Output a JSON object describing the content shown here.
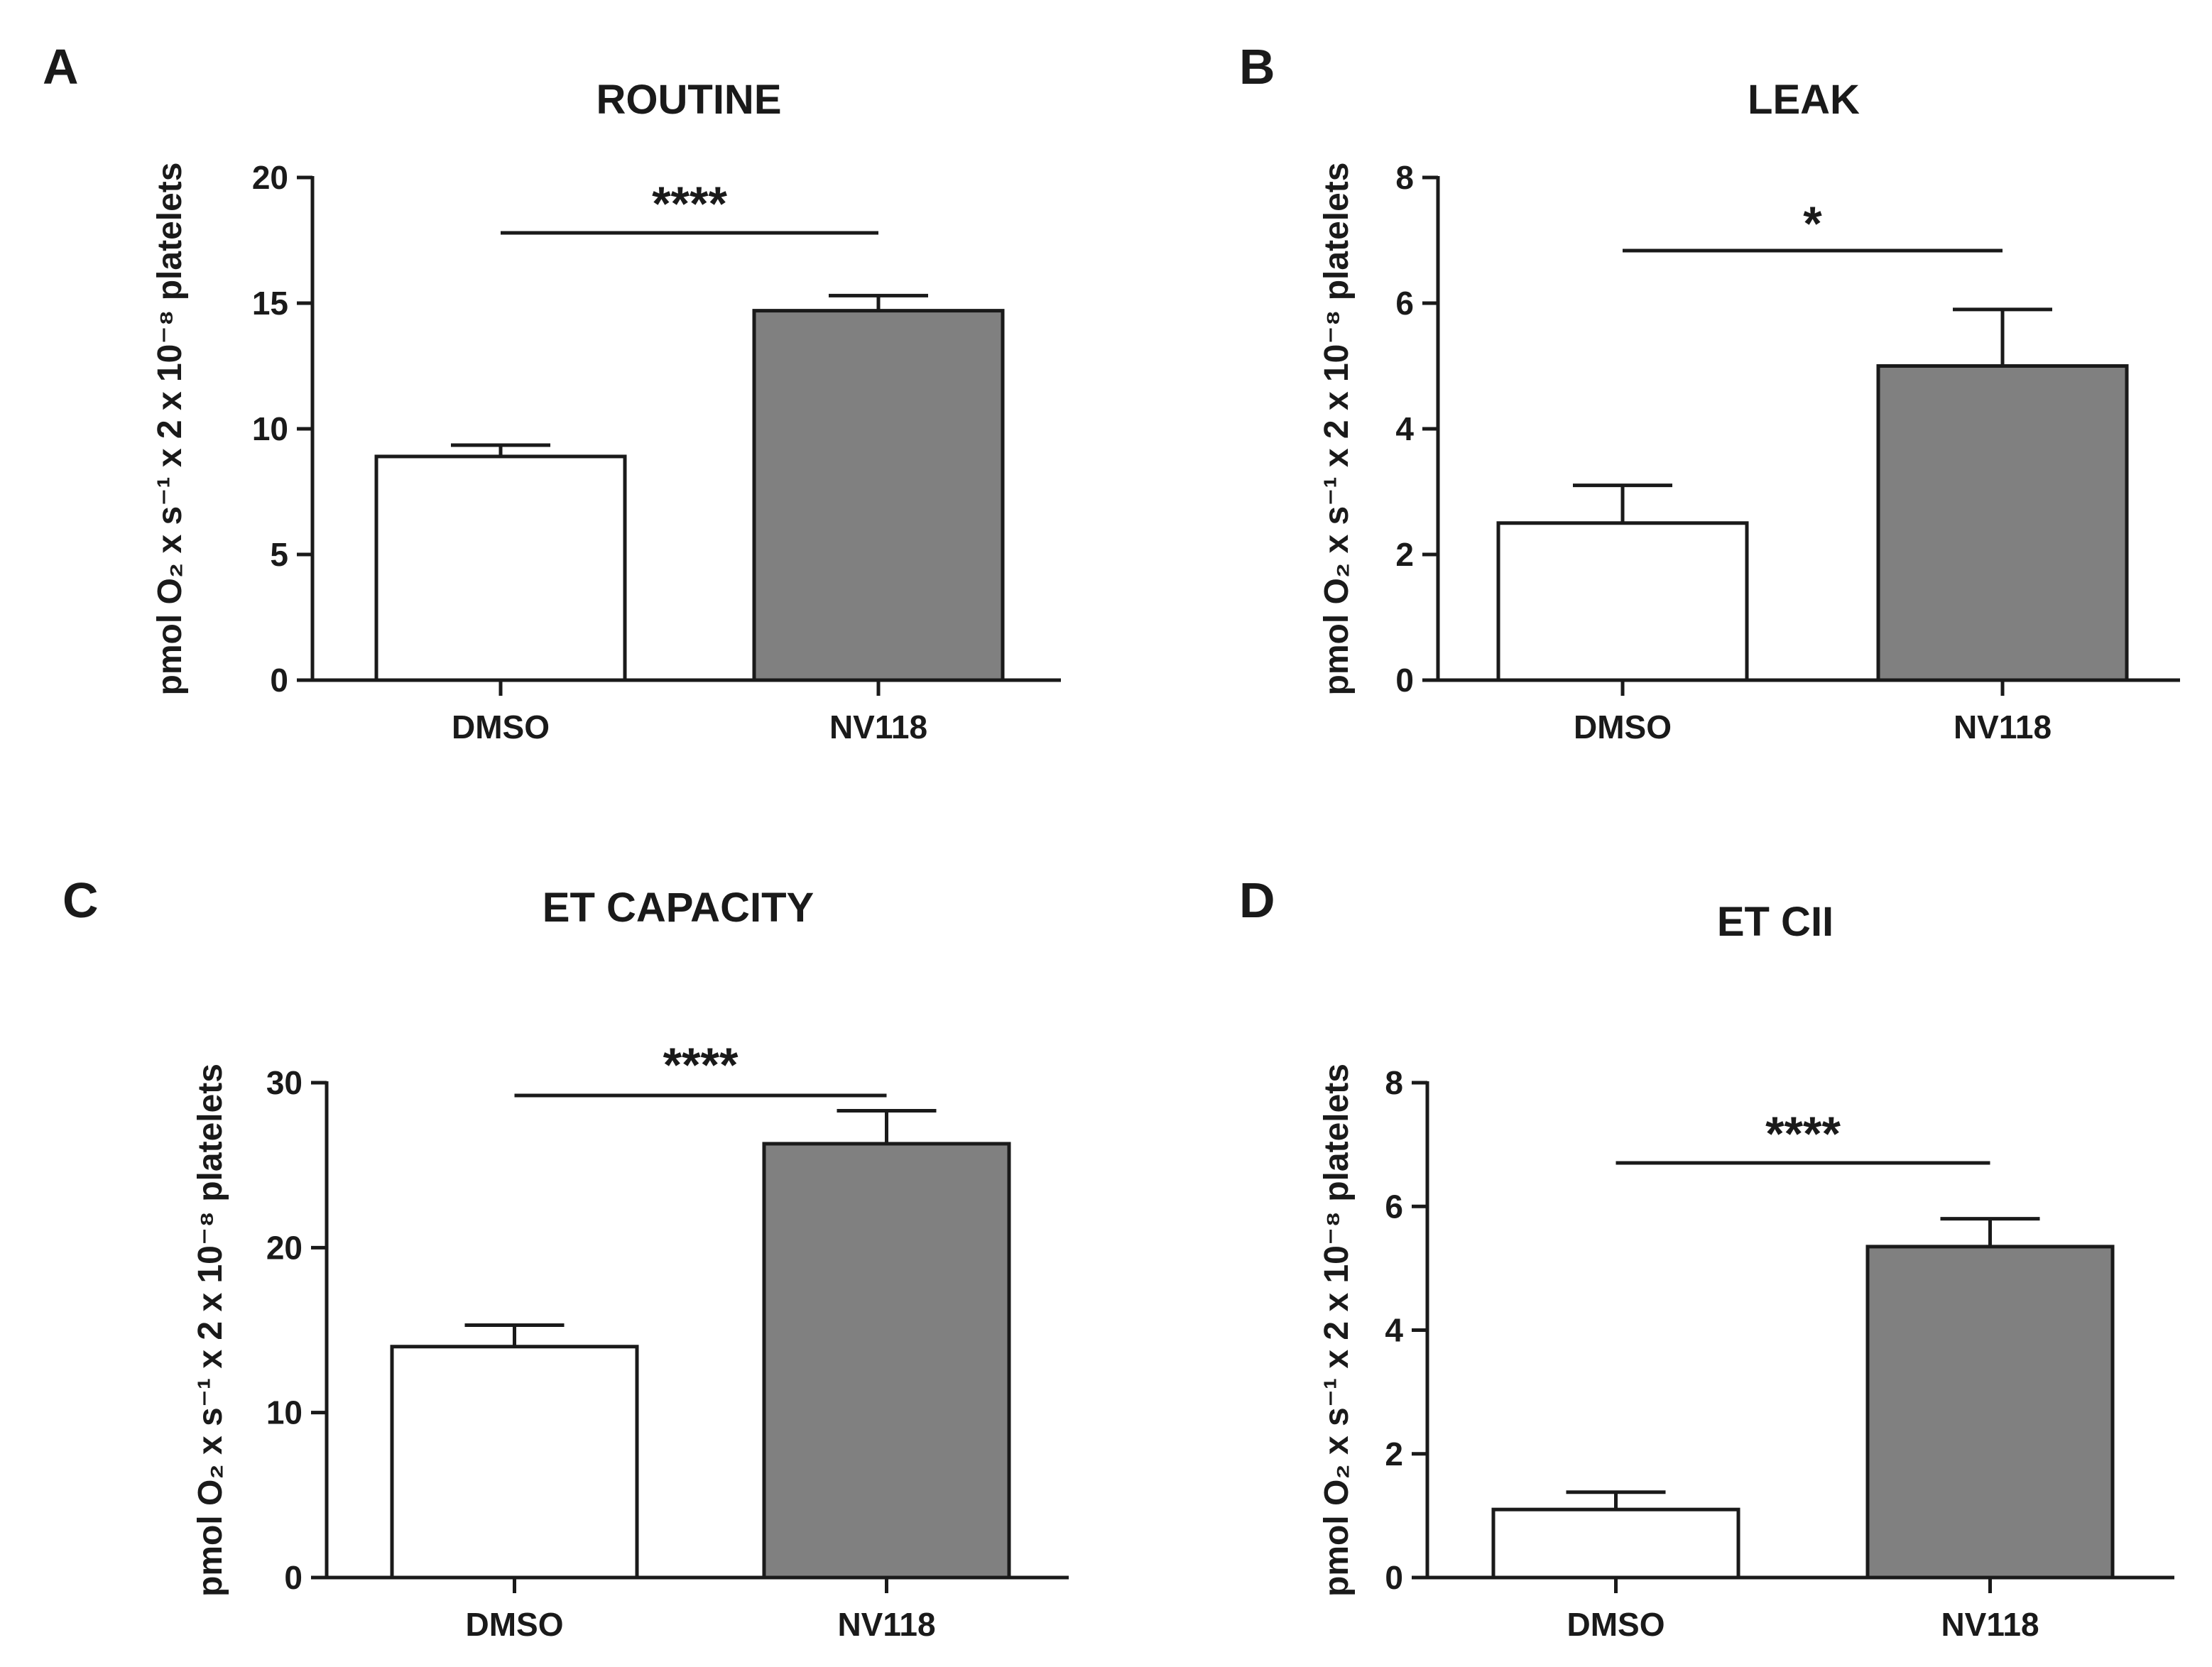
{
  "chart_data": [
    {
      "type": "bar",
      "panel": "A",
      "title": "ROUTINE",
      "categories": [
        "DMSO",
        "NV118"
      ],
      "values": [
        8.9,
        14.7
      ],
      "errors": [
        0.45,
        0.6
      ],
      "colors": [
        "#ffffff",
        "#808080"
      ],
      "ylabel": "pmol O₂ x s⁻¹ x 2 x 10⁻⁸ platelets",
      "ylim": [
        0,
        20
      ],
      "yticks": [
        0,
        5,
        10,
        15,
        20
      ],
      "significance": "****",
      "grid": false,
      "legend": "none"
    },
    {
      "type": "bar",
      "panel": "B",
      "title": "LEAK",
      "categories": [
        "DMSO",
        "NV118"
      ],
      "values": [
        2.5,
        5.0
      ],
      "errors": [
        0.6,
        0.9
      ],
      "colors": [
        "#ffffff",
        "#808080"
      ],
      "ylabel": "pmol O₂ x s⁻¹ x 2 x 10⁻⁸ platelets",
      "ylim": [
        0,
        8
      ],
      "yticks": [
        0,
        2,
        4,
        6,
        8
      ],
      "significance": "*",
      "grid": false,
      "legend": "none"
    },
    {
      "type": "bar",
      "panel": "C",
      "title": "ET CAPACITY",
      "categories": [
        "DMSO",
        "NV118"
      ],
      "values": [
        14.0,
        26.3
      ],
      "errors": [
        1.3,
        2.0
      ],
      "colors": [
        "#ffffff",
        "#808080"
      ],
      "ylabel": "pmol O₂ x s⁻¹ x 2 x 10⁻⁸ platelets",
      "ylim": [
        0,
        30
      ],
      "yticks": [
        0,
        10,
        20,
        30
      ],
      "significance": "****",
      "grid": false,
      "legend": "none"
    },
    {
      "type": "bar",
      "panel": "D",
      "title": "ET CII",
      "categories": [
        "DMSO",
        "NV118"
      ],
      "values": [
        1.1,
        5.35
      ],
      "errors": [
        0.28,
        0.45
      ],
      "colors": [
        "#ffffff",
        "#808080"
      ],
      "ylabel": "pmol O₂ x s⁻¹ x 2 x 10⁻⁸ platelets",
      "ylim": [
        0,
        8
      ],
      "yticks": [
        0,
        2,
        4,
        6,
        8
      ],
      "significance": "****",
      "grid": false,
      "legend": "none"
    }
  ]
}
